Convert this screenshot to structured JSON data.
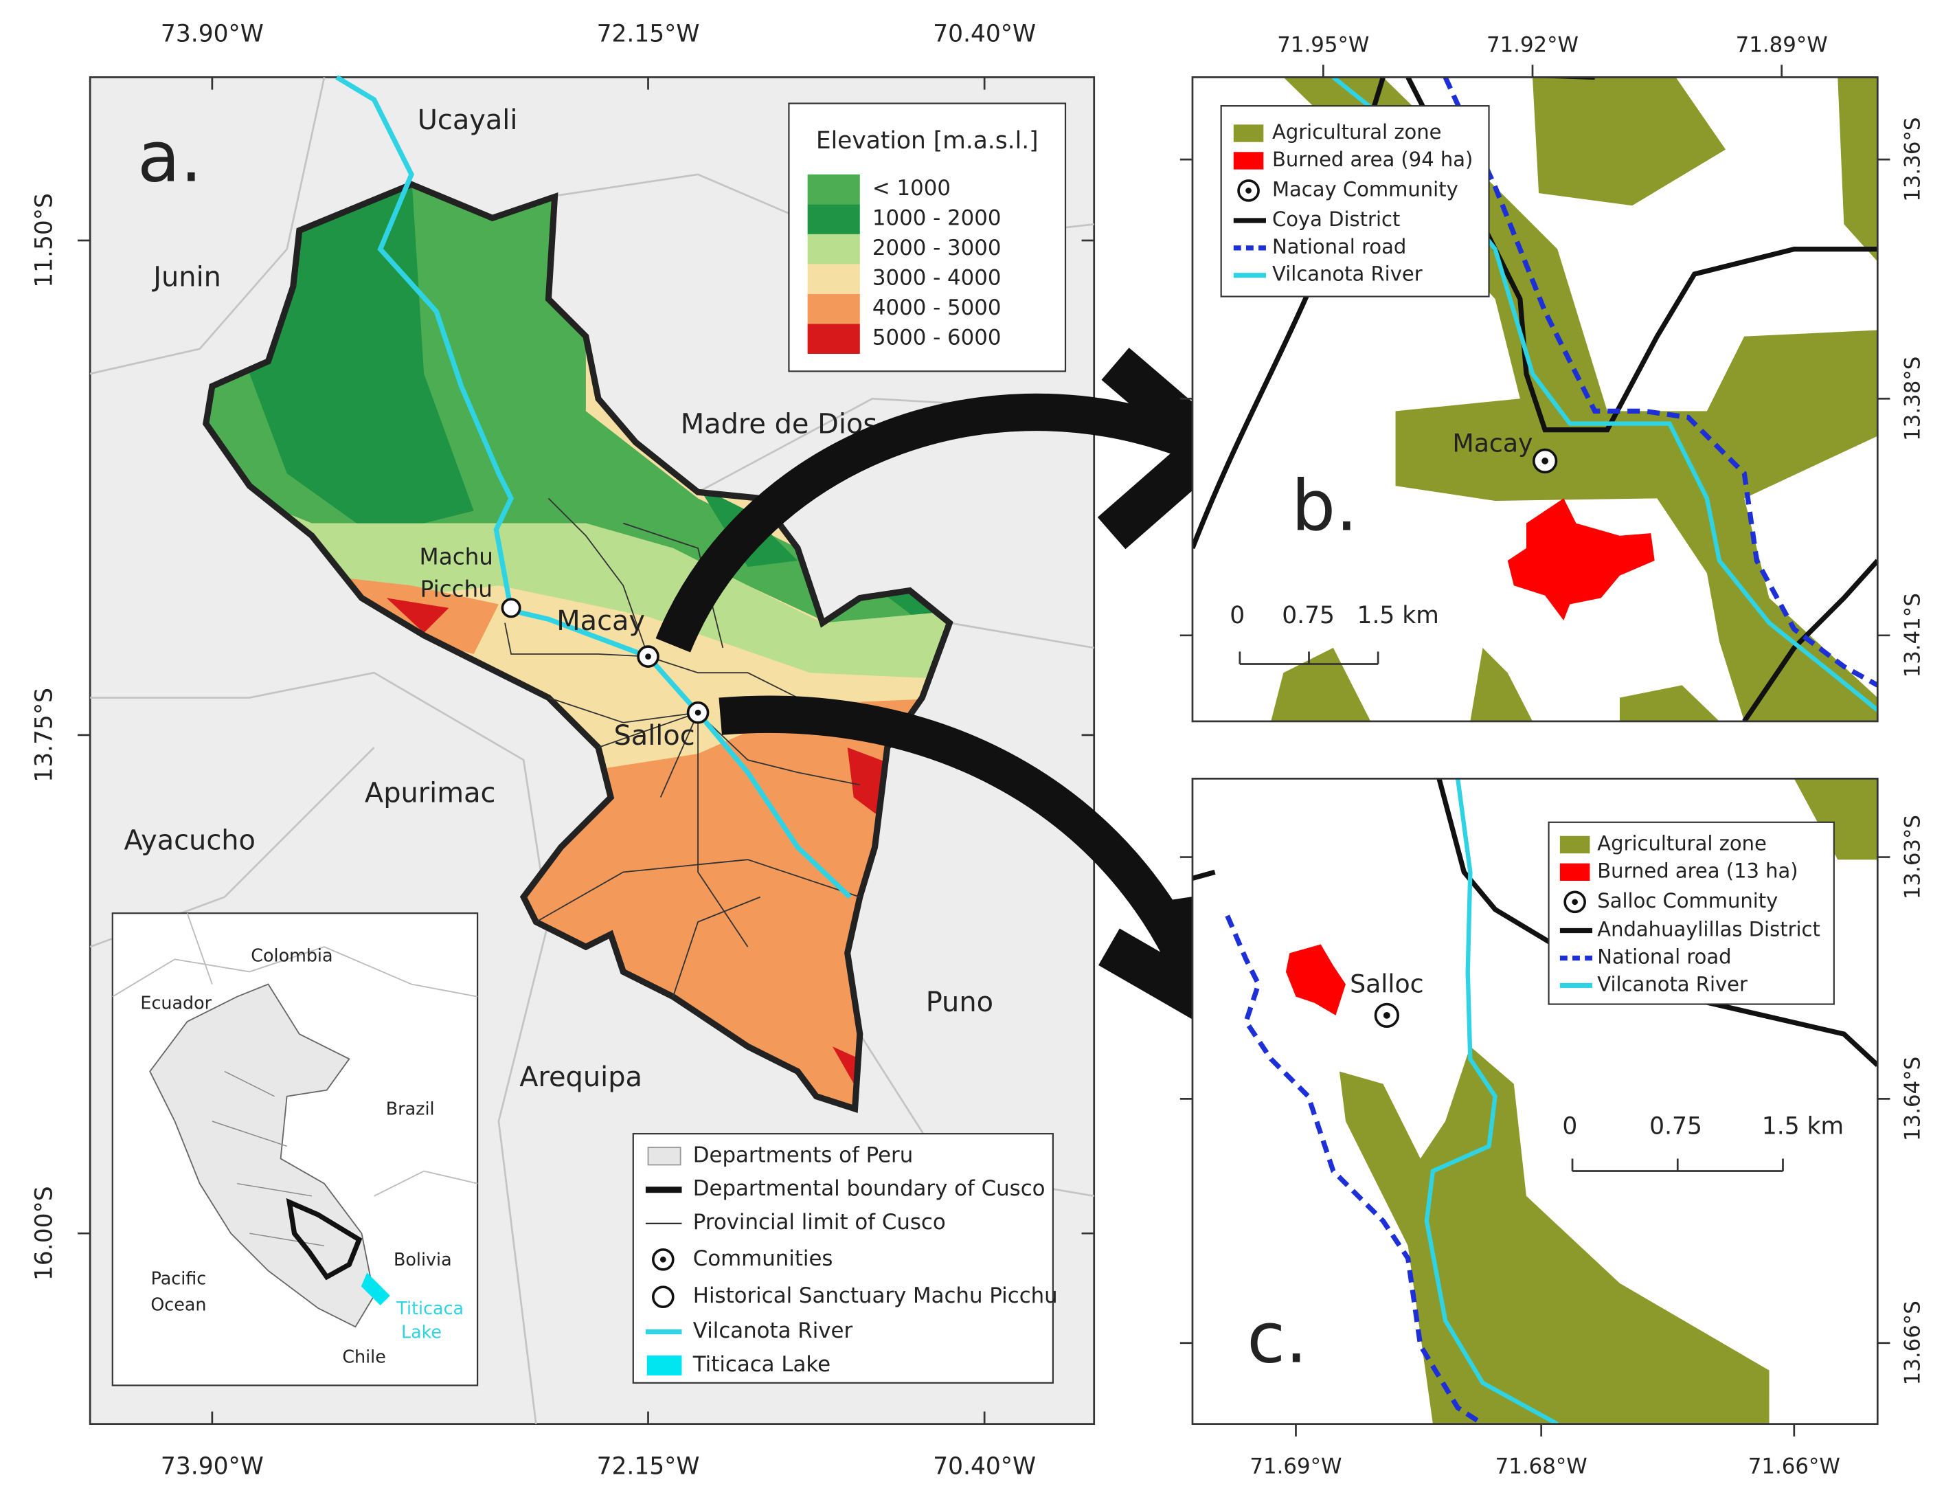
{
  "map_a": {
    "label": "a.",
    "x_ticks": [
      "73.90°W",
      "72.15°W",
      "70.40°W"
    ],
    "y_ticks": [
      "11.50°S",
      "13.75°S",
      "16.00°S"
    ],
    "places": [
      "Ucayali",
      "Junin",
      "Madre de Dios",
      "Apurimac",
      "Ayacucho",
      "Puno",
      "Arequipa",
      "Macay",
      "Salloc"
    ],
    "machu_picchu": [
      "Machu",
      "Picchu"
    ],
    "elevation_legend": {
      "title": "Elevation [m.a.s.l.]",
      "items": [
        {
          "label": "< 1000",
          "color": "#4cad52"
        },
        {
          "label": "1000 - 2000",
          "color": "#1f9444"
        },
        {
          "label": "2000 - 3000",
          "color": "#b9df8e"
        },
        {
          "label": "3000 - 4000",
          "color": "#f5dfa2"
        },
        {
          "label": "4000 - 5000",
          "color": "#f39a5b"
        },
        {
          "label": "5000 - 6000",
          "color": "#d7191c"
        }
      ]
    },
    "legend": [
      "Departments of Peru",
      "Departmental boundary of Cusco",
      "Provincial limit of Cusco",
      "Communities",
      "Historical Sanctuary Machu Picchu",
      "Vilcanota River",
      "Titicaca Lake"
    ],
    "inset": {
      "places": [
        "Colombia",
        "Ecuador",
        "Brazil",
        "Bolivia",
        "Chile"
      ],
      "pacific": [
        "Pacific",
        "Ocean"
      ],
      "lake": [
        "Titicaca",
        "Lake"
      ]
    }
  },
  "map_b": {
    "label": "b.",
    "x_ticks": [
      "71.95°W",
      "71.92°W",
      "71.89°W"
    ],
    "y_ticks": [
      "13.36°S",
      "13.38°S",
      "13.41°S"
    ],
    "legend": [
      "Agricultural zone",
      "Burned area (94 ha)",
      "Macay Community",
      "Coya District",
      "National road",
      "Vilcanota River"
    ],
    "place": "Macay",
    "scale_bar": [
      "0",
      "0.75",
      "1.5 km"
    ]
  },
  "map_c": {
    "label": "c.",
    "x_ticks": [
      "71.69°W",
      "71.68°W",
      "71.66°W"
    ],
    "y_ticks": [
      "13.63°S",
      "13.64°S",
      "13.66°S"
    ],
    "legend": [
      "Agricultural zone",
      "Burned area (13 ha)",
      "Salloc Community",
      "Andahuaylillas District",
      "National road",
      "Vilcanota River"
    ],
    "place": "Salloc",
    "scale_bar": [
      "0",
      "0.75",
      "1.5 km"
    ]
  }
}
